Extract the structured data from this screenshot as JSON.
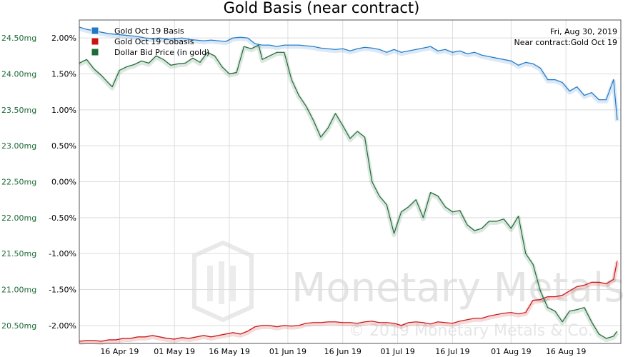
{
  "chart_data": {
    "type": "line",
    "title": "Gold Basis (near contract)",
    "info": {
      "date": "Fri, Aug 30, 2019",
      "contract": "Near contract:Gold Oct 19"
    },
    "watermark": {
      "brand": "Monetary Metals",
      "copyright": "© 2019 Monetary Metals & Co."
    },
    "legend": {
      "placement": "top-left"
    },
    "grid": true,
    "x_domain": [
      "2019-04-05",
      "2019-08-31"
    ],
    "x_ticks": [
      {
        "date": "2019-04-16",
        "label": "16 Apr 19"
      },
      {
        "date": "2019-05-01",
        "label": "01 May 19"
      },
      {
        "date": "2019-05-16",
        "label": "16 May 19"
      },
      {
        "date": "2019-06-01",
        "label": "01 Jun 19"
      },
      {
        "date": "2019-06-16",
        "label": "16 Jun 19"
      },
      {
        "date": "2019-07-01",
        "label": "01 Jul 19"
      },
      {
        "date": "2019-07-16",
        "label": "16 Jul 19"
      },
      {
        "date": "2019-08-01",
        "label": "01 Aug 19"
      },
      {
        "date": "2019-08-16",
        "label": "16 Aug 19"
      }
    ],
    "y_left": {
      "unit": "mg",
      "range": [
        20.25,
        24.75
      ],
      "ticks": [
        {
          "value": 20.5,
          "label": "20.50mg"
        },
        {
          "value": 21.0,
          "label": "21.00mg"
        },
        {
          "value": 21.5,
          "label": "21.50mg"
        },
        {
          "value": 22.0,
          "label": "22.00mg"
        },
        {
          "value": 22.5,
          "label": "22.50mg"
        },
        {
          "value": 23.0,
          "label": "23.00mg"
        },
        {
          "value": 23.5,
          "label": "23.50mg"
        },
        {
          "value": 24.0,
          "label": "24.00mg"
        },
        {
          "value": 24.5,
          "label": "24.50mg"
        }
      ]
    },
    "y_right": {
      "unit": "%",
      "range": [
        -2.25,
        2.25
      ],
      "ticks": [
        {
          "value": -2.0,
          "label": "-2.00%"
        },
        {
          "value": -1.5,
          "label": "-1.50%"
        },
        {
          "value": -1.0,
          "label": "-1.00%"
        },
        {
          "value": -0.5,
          "label": "-0.50%"
        },
        {
          "value": 0.0,
          "label": "0.00%"
        },
        {
          "value": 0.5,
          "label": "0.50%"
        },
        {
          "value": 1.0,
          "label": "1.00%"
        },
        {
          "value": 1.5,
          "label": "1.50%"
        },
        {
          "value": 2.0,
          "label": "2.00%"
        }
      ]
    },
    "series": [
      {
        "name": "Gold Oct 19 Basis",
        "axis": "right",
        "color": "#1f78c8",
        "points": [
          [
            "2019-04-05",
            2.15
          ],
          [
            "2019-04-07",
            2.12
          ],
          [
            "2019-04-09",
            2.1
          ],
          [
            "2019-04-11",
            2.08
          ],
          [
            "2019-04-13",
            2.06
          ],
          [
            "2019-04-15",
            2.05
          ],
          [
            "2019-04-17",
            2.04
          ],
          [
            "2019-04-19",
            2.03
          ],
          [
            "2019-04-21",
            2.02
          ],
          [
            "2019-04-23",
            2.0
          ],
          [
            "2019-04-25",
            1.99
          ],
          [
            "2019-04-27",
            2.0
          ],
          [
            "2019-04-29",
            1.98
          ],
          [
            "2019-05-01",
            1.99
          ],
          [
            "2019-05-03",
            2.0
          ],
          [
            "2019-05-05",
            1.98
          ],
          [
            "2019-05-07",
            1.97
          ],
          [
            "2019-05-09",
            1.96
          ],
          [
            "2019-05-11",
            1.97
          ],
          [
            "2019-05-13",
            1.96
          ],
          [
            "2019-05-15",
            1.95
          ],
          [
            "2019-05-17",
            2.0
          ],
          [
            "2019-05-19",
            2.01
          ],
          [
            "2019-05-21",
            2.0
          ],
          [
            "2019-05-23",
            1.92
          ],
          [
            "2019-05-25",
            1.9
          ],
          [
            "2019-05-27",
            1.9
          ],
          [
            "2019-05-29",
            1.88
          ],
          [
            "2019-05-31",
            1.9
          ],
          [
            "2019-06-02",
            1.9
          ],
          [
            "2019-06-04",
            1.9
          ],
          [
            "2019-06-06",
            1.89
          ],
          [
            "2019-06-08",
            1.88
          ],
          [
            "2019-06-10",
            1.86
          ],
          [
            "2019-06-12",
            1.85
          ],
          [
            "2019-06-14",
            1.84
          ],
          [
            "2019-06-16",
            1.85
          ],
          [
            "2019-06-18",
            1.82
          ],
          [
            "2019-06-20",
            1.85
          ],
          [
            "2019-06-22",
            1.87
          ],
          [
            "2019-06-24",
            1.86
          ],
          [
            "2019-06-26",
            1.84
          ],
          [
            "2019-06-28",
            1.8
          ],
          [
            "2019-06-30",
            1.84
          ],
          [
            "2019-07-02",
            1.8
          ],
          [
            "2019-07-04",
            1.82
          ],
          [
            "2019-07-06",
            1.84
          ],
          [
            "2019-07-08",
            1.86
          ],
          [
            "2019-07-10",
            1.88
          ],
          [
            "2019-07-12",
            1.82
          ],
          [
            "2019-07-14",
            1.84
          ],
          [
            "2019-07-16",
            1.8
          ],
          [
            "2019-07-18",
            1.82
          ],
          [
            "2019-07-20",
            1.78
          ],
          [
            "2019-07-22",
            1.8
          ],
          [
            "2019-07-24",
            1.76
          ],
          [
            "2019-07-26",
            1.74
          ],
          [
            "2019-07-28",
            1.72
          ],
          [
            "2019-07-30",
            1.7
          ],
          [
            "2019-08-01",
            1.68
          ],
          [
            "2019-08-03",
            1.62
          ],
          [
            "2019-08-05",
            1.66
          ],
          [
            "2019-08-07",
            1.64
          ],
          [
            "2019-08-09",
            1.58
          ],
          [
            "2019-08-11",
            1.42
          ],
          [
            "2019-08-13",
            1.42
          ],
          [
            "2019-08-15",
            1.38
          ],
          [
            "2019-08-17",
            1.26
          ],
          [
            "2019-08-19",
            1.32
          ],
          [
            "2019-08-21",
            1.2
          ],
          [
            "2019-08-23",
            1.24
          ],
          [
            "2019-08-25",
            1.14
          ],
          [
            "2019-08-27",
            1.14
          ],
          [
            "2019-08-29",
            1.42
          ],
          [
            "2019-08-30",
            0.86
          ]
        ]
      },
      {
        "name": "Gold Oct 19 Cobasis",
        "axis": "right",
        "color": "#c81414",
        "points": [
          [
            "2019-04-05",
            -2.22
          ],
          [
            "2019-04-07",
            -2.21
          ],
          [
            "2019-04-09",
            -2.21
          ],
          [
            "2019-04-11",
            -2.22
          ],
          [
            "2019-04-13",
            -2.2
          ],
          [
            "2019-04-15",
            -2.2
          ],
          [
            "2019-04-17",
            -2.18
          ],
          [
            "2019-04-19",
            -2.18
          ],
          [
            "2019-04-21",
            -2.16
          ],
          [
            "2019-04-23",
            -2.16
          ],
          [
            "2019-04-25",
            -2.14
          ],
          [
            "2019-04-27",
            -2.16
          ],
          [
            "2019-04-29",
            -2.18
          ],
          [
            "2019-05-01",
            -2.19
          ],
          [
            "2019-05-03",
            -2.17
          ],
          [
            "2019-05-05",
            -2.18
          ],
          [
            "2019-05-07",
            -2.16
          ],
          [
            "2019-05-09",
            -2.14
          ],
          [
            "2019-05-11",
            -2.16
          ],
          [
            "2019-05-13",
            -2.14
          ],
          [
            "2019-05-15",
            -2.12
          ],
          [
            "2019-05-17",
            -2.1
          ],
          [
            "2019-05-19",
            -2.12
          ],
          [
            "2019-05-21",
            -2.08
          ],
          [
            "2019-05-23",
            -2.02
          ],
          [
            "2019-05-25",
            -2.0
          ],
          [
            "2019-05-27",
            -2.0
          ],
          [
            "2019-05-29",
            -2.02
          ],
          [
            "2019-05-31",
            -2.0
          ],
          [
            "2019-06-02",
            -2.01
          ],
          [
            "2019-06-04",
            -2.0
          ],
          [
            "2019-06-06",
            -1.97
          ],
          [
            "2019-06-08",
            -1.96
          ],
          [
            "2019-06-10",
            -1.96
          ],
          [
            "2019-06-12",
            -1.95
          ],
          [
            "2019-06-14",
            -1.95
          ],
          [
            "2019-06-16",
            -1.96
          ],
          [
            "2019-06-18",
            -1.96
          ],
          [
            "2019-06-20",
            -1.97
          ],
          [
            "2019-06-22",
            -1.95
          ],
          [
            "2019-06-24",
            -1.94
          ],
          [
            "2019-06-26",
            -1.96
          ],
          [
            "2019-06-28",
            -1.96
          ],
          [
            "2019-06-30",
            -1.97
          ],
          [
            "2019-07-02",
            -2.0
          ],
          [
            "2019-07-04",
            -1.96
          ],
          [
            "2019-07-06",
            -1.95
          ],
          [
            "2019-07-08",
            -1.96
          ],
          [
            "2019-07-10",
            -1.98
          ],
          [
            "2019-07-12",
            -1.95
          ],
          [
            "2019-07-14",
            -1.96
          ],
          [
            "2019-07-16",
            -1.97
          ],
          [
            "2019-07-18",
            -1.94
          ],
          [
            "2019-07-20",
            -1.92
          ],
          [
            "2019-07-22",
            -1.9
          ],
          [
            "2019-07-24",
            -1.9
          ],
          [
            "2019-07-26",
            -1.87
          ],
          [
            "2019-07-28",
            -1.85
          ],
          [
            "2019-07-30",
            -1.83
          ],
          [
            "2019-08-01",
            -1.82
          ],
          [
            "2019-08-03",
            -1.84
          ],
          [
            "2019-08-05",
            -1.82
          ],
          [
            "2019-08-07",
            -1.65
          ],
          [
            "2019-08-09",
            -1.64
          ],
          [
            "2019-08-11",
            -1.6
          ],
          [
            "2019-08-13",
            -1.6
          ],
          [
            "2019-08-15",
            -1.58
          ],
          [
            "2019-08-17",
            -1.52
          ],
          [
            "2019-08-19",
            -1.46
          ],
          [
            "2019-08-21",
            -1.44
          ],
          [
            "2019-08-23",
            -1.4
          ],
          [
            "2019-08-25",
            -1.4
          ],
          [
            "2019-08-27",
            -1.42
          ],
          [
            "2019-08-29",
            -1.36
          ],
          [
            "2019-08-30",
            -1.1
          ]
        ]
      },
      {
        "name": "Dollar Bid Price (in gold)",
        "axis": "left",
        "color": "#1d6b36",
        "points": [
          [
            "2019-04-05",
            24.15
          ],
          [
            "2019-04-07",
            24.2
          ],
          [
            "2019-04-09",
            24.07
          ],
          [
            "2019-04-11",
            23.98
          ],
          [
            "2019-04-13",
            23.87
          ],
          [
            "2019-04-14",
            23.82
          ],
          [
            "2019-04-16",
            24.05
          ],
          [
            "2019-04-18",
            24.1
          ],
          [
            "2019-04-20",
            24.13
          ],
          [
            "2019-04-22",
            24.18
          ],
          [
            "2019-04-24",
            24.15
          ],
          [
            "2019-04-26",
            24.25
          ],
          [
            "2019-04-28",
            24.2
          ],
          [
            "2019-04-30",
            24.12
          ],
          [
            "2019-05-02",
            24.14
          ],
          [
            "2019-05-04",
            24.15
          ],
          [
            "2019-05-06",
            24.22
          ],
          [
            "2019-05-08",
            24.16
          ],
          [
            "2019-05-10",
            24.3
          ],
          [
            "2019-05-12",
            24.25
          ],
          [
            "2019-05-14",
            24.1
          ],
          [
            "2019-05-16",
            24.0
          ],
          [
            "2019-05-18",
            24.02
          ],
          [
            "2019-05-20",
            24.38
          ],
          [
            "2019-05-22",
            24.35
          ],
          [
            "2019-05-24",
            24.4
          ],
          [
            "2019-05-25",
            24.2
          ],
          [
            "2019-05-27",
            24.25
          ],
          [
            "2019-05-29",
            24.3
          ],
          [
            "2019-05-31",
            24.3
          ],
          [
            "2019-06-02",
            23.92
          ],
          [
            "2019-06-04",
            23.7
          ],
          [
            "2019-06-06",
            23.55
          ],
          [
            "2019-06-08",
            23.35
          ],
          [
            "2019-06-10",
            23.12
          ],
          [
            "2019-06-12",
            23.25
          ],
          [
            "2019-06-14",
            23.45
          ],
          [
            "2019-06-16",
            23.28
          ],
          [
            "2019-06-18",
            23.1
          ],
          [
            "2019-06-20",
            23.2
          ],
          [
            "2019-06-22",
            23.12
          ],
          [
            "2019-06-24",
            22.5
          ],
          [
            "2019-06-26",
            22.3
          ],
          [
            "2019-06-28",
            22.18
          ],
          [
            "2019-06-30",
            21.78
          ],
          [
            "2019-07-02",
            22.08
          ],
          [
            "2019-07-04",
            22.15
          ],
          [
            "2019-07-06",
            22.25
          ],
          [
            "2019-07-08",
            22.0
          ],
          [
            "2019-07-10",
            22.35
          ],
          [
            "2019-07-12",
            22.3
          ],
          [
            "2019-07-14",
            22.15
          ],
          [
            "2019-07-16",
            22.08
          ],
          [
            "2019-07-18",
            22.1
          ],
          [
            "2019-07-20",
            21.9
          ],
          [
            "2019-07-22",
            21.82
          ],
          [
            "2019-07-24",
            21.85
          ],
          [
            "2019-07-26",
            21.95
          ],
          [
            "2019-07-28",
            21.95
          ],
          [
            "2019-07-30",
            21.98
          ],
          [
            "2019-08-01",
            21.85
          ],
          [
            "2019-08-03",
            22.02
          ],
          [
            "2019-08-05",
            21.5
          ],
          [
            "2019-08-07",
            21.35
          ],
          [
            "2019-08-09",
            20.98
          ],
          [
            "2019-08-11",
            20.75
          ],
          [
            "2019-08-13",
            20.7
          ],
          [
            "2019-08-15",
            20.55
          ],
          [
            "2019-08-17",
            20.7
          ],
          [
            "2019-08-19",
            20.72
          ],
          [
            "2019-08-21",
            20.75
          ],
          [
            "2019-08-23",
            20.55
          ],
          [
            "2019-08-25",
            20.38
          ],
          [
            "2019-08-27",
            20.32
          ],
          [
            "2019-08-29",
            20.35
          ],
          [
            "2019-08-30",
            20.42
          ]
        ]
      }
    ]
  }
}
